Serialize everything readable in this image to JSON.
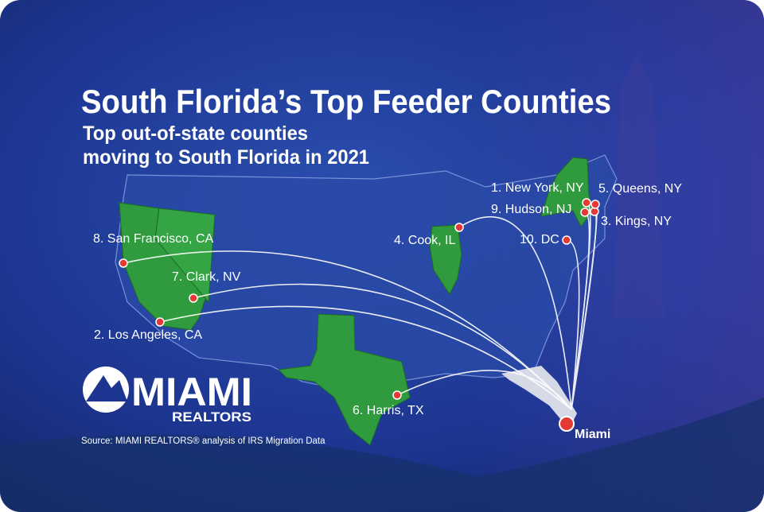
{
  "header": {
    "title": "South Florida’s Top Feeder Counties",
    "subtitle": [
      "Top out-of-state counties",
      "moving to South Florida in 2021"
    ]
  },
  "counties": [
    "1. New York, NY",
    "2. Los Angeles, CA",
    "3. Kings, NY",
    "4. Cook, IL",
    "5. Queens, NY",
    "6. Harris, TX",
    "7. Clark, NV",
    "8. San Francisco, CA",
    "9. Hudson, NJ",
    "10. DC"
  ],
  "destination": "Miami",
  "logo": {
    "name": "MIAMI",
    "tagline": "REALTORS"
  },
  "source": "Source: MIAMI REALTORS® analysis of IRS Migration Data"
}
